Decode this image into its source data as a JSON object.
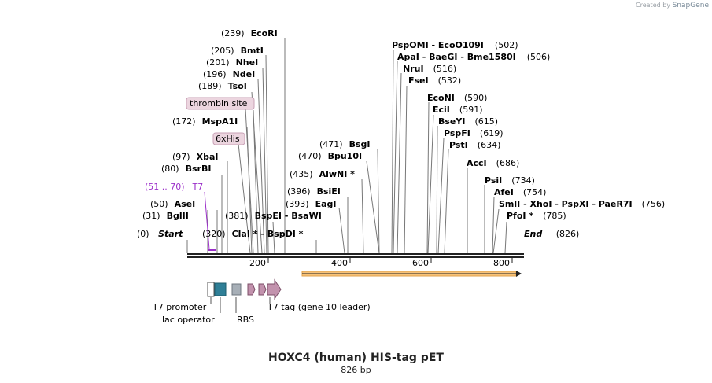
{
  "brand": {
    "created_by": "Created by",
    "app_name": "SnapGene"
  },
  "title": "HOXC4 (human) HIS-tag pET",
  "length_label": "826 bp",
  "ruler": {
    "ticks": [
      "200",
      "400",
      "600",
      "800"
    ]
  },
  "ends": {
    "start": {
      "pos": "(0)",
      "name": "Start"
    },
    "end": {
      "name": "End",
      "pos": "(826)"
    }
  },
  "sites": [
    {
      "pos": "(239)",
      "names": "EcoRI"
    },
    {
      "pos": "(205)",
      "names": "BmtI"
    },
    {
      "pos": "(201)",
      "names": "NheI"
    },
    {
      "pos": "(196)",
      "names": "NdeI"
    },
    {
      "pos": "(189)",
      "names": "TsoI"
    },
    {
      "pos": "(172)",
      "names": "MspA1I"
    },
    {
      "pos": "(97)",
      "names": "XbaI"
    },
    {
      "pos": "(80)",
      "names": "BsrBI"
    },
    {
      "pos": "(50)",
      "names": "AseI"
    },
    {
      "pos": "(31)",
      "names": "BglII"
    },
    {
      "pos": "(320)",
      "names": "ClaI * - BspDI *"
    },
    {
      "pos": "(381)",
      "names": "BspEI - BsaWI"
    },
    {
      "pos": "(393)",
      "names": "EagI"
    },
    {
      "pos": "(396)",
      "names": "BsiEI"
    },
    {
      "pos": "(435)",
      "names": "AlwNI *"
    },
    {
      "pos": "(470)",
      "names": "Bpu10I"
    },
    {
      "pos": "(471)",
      "names": "BsgI"
    },
    {
      "pos": "(502)",
      "names": "PspOMI - EcoO109I"
    },
    {
      "pos": "(506)",
      "names": "ApaI - BaeGI - Bme1580I"
    },
    {
      "pos": "(516)",
      "names": "NruI"
    },
    {
      "pos": "(532)",
      "names": "FseI"
    },
    {
      "pos": "(590)",
      "names": "EcoNI"
    },
    {
      "pos": "(591)",
      "names": "EciI"
    },
    {
      "pos": "(615)",
      "names": "BseYI"
    },
    {
      "pos": "(619)",
      "names": "PspFI"
    },
    {
      "pos": "(634)",
      "names": "PstI"
    },
    {
      "pos": "(686)",
      "names": "AccI"
    },
    {
      "pos": "(734)",
      "names": "PsiI"
    },
    {
      "pos": "(754)",
      "names": "AfeI"
    },
    {
      "pos": "(756)",
      "names": "SmlI - XhoI - PspXI - PaeR7I"
    },
    {
      "pos": "(785)",
      "names": "PfoI *"
    }
  ],
  "top_features": [
    {
      "name": "thrombin site",
      "color": "#c9a1b6"
    },
    {
      "name": "6xHis",
      "color": "#c9a1b6"
    }
  ],
  "primer": {
    "range": "(51 .. 70)",
    "name": "T7",
    "color": "#9b2fc9"
  },
  "bottom_features": [
    {
      "name": "T7 promoter"
    },
    {
      "name": "lac operator"
    },
    {
      "name": "RBS"
    },
    {
      "name": "T7 tag (gene 10 leader)"
    }
  ],
  "colors": {
    "lac_operator": "#2f7f97",
    "rbs": "#a7afb7",
    "t7tag": "#c292ad",
    "orf": "#f6c27a"
  }
}
